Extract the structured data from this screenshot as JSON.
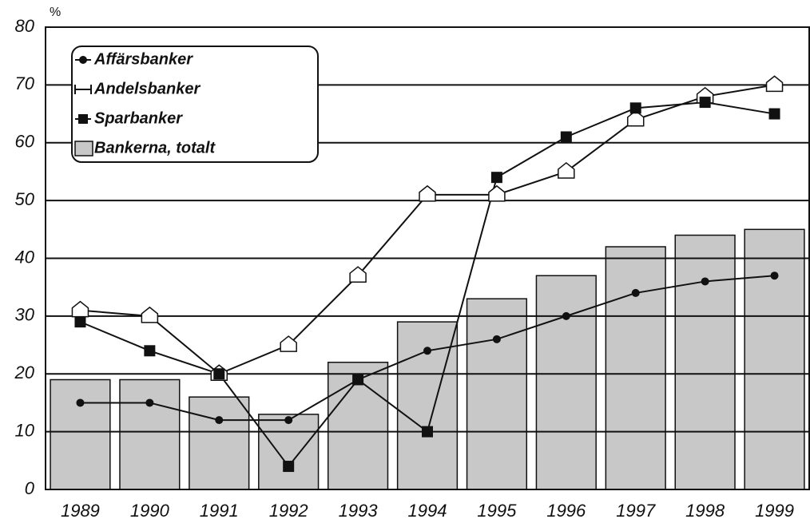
{
  "chart_data": {
    "type": "bar",
    "y_label": "%",
    "categories": [
      "1989",
      "1990",
      "1991",
      "1992",
      "1993",
      "1994",
      "1995",
      "1996",
      "1997",
      "1998",
      "1999"
    ],
    "series": [
      {
        "name": "Affärsbanker",
        "kind": "line",
        "marker": "circle",
        "color": "#111111",
        "values": [
          15,
          15,
          12,
          12,
          19,
          24,
          26,
          30,
          34,
          36,
          37
        ]
      },
      {
        "name": "Andelsbanker",
        "kind": "line",
        "marker": "house",
        "color": "#111111",
        "values": [
          31,
          30,
          20,
          25,
          37,
          51,
          51,
          55,
          64,
          68,
          70
        ]
      },
      {
        "name": "Sparbanker",
        "kind": "line",
        "marker": "square",
        "color": "#111111",
        "values": [
          29,
          24,
          20,
          4,
          19,
          10,
          54,
          61,
          66,
          67,
          65
        ]
      },
      {
        "name": "Bankerna, totalt",
        "kind": "bar",
        "color": "#c8c8c8",
        "values": [
          19,
          19,
          16,
          13,
          22,
          29,
          33,
          37,
          42,
          44,
          45
        ]
      }
    ],
    "ylim": [
      0,
      80
    ],
    "yticks": [
      0,
      10,
      20,
      30,
      40,
      50,
      60,
      70,
      80
    ],
    "grid": true,
    "legend": "upper left"
  }
}
